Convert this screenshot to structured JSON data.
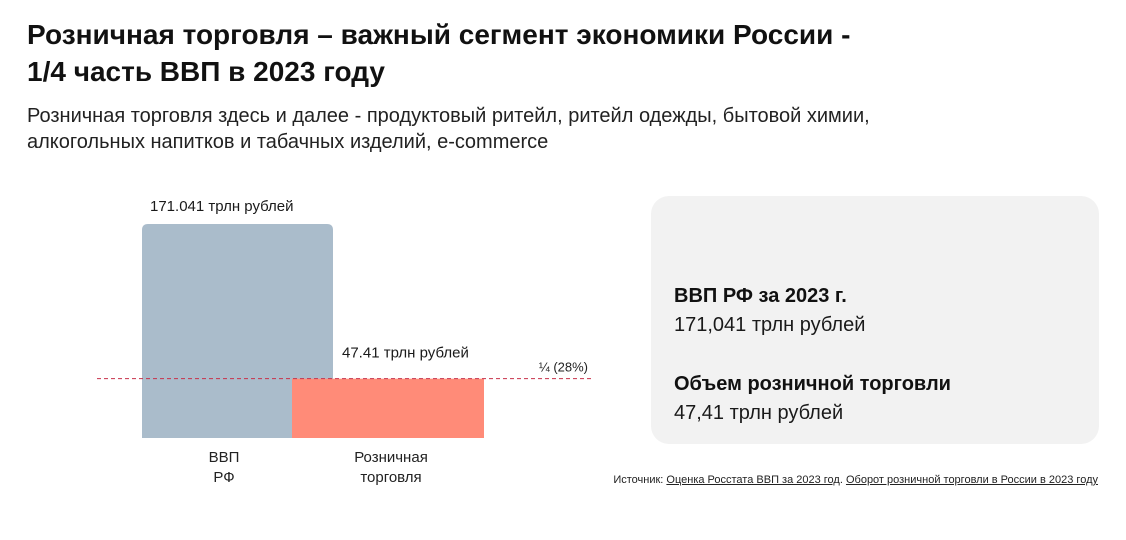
{
  "header": {
    "title_line1": "Розничная торговля – важный сегмент экономики России -",
    "title_line2": "1/4 часть ВВП в 2023 году",
    "subtitle_line1": "Розничная торговля здесь и далее - продуктовый ритейл, ритейл одежды, бытовой химии,",
    "subtitle_line2": "алкогольных напитков и табачных изделий, e-commerce"
  },
  "chart_data": {
    "type": "bar",
    "title": "",
    "unit": "трлн рублей",
    "categories": [
      {
        "name": "ВВП РФ",
        "label_lines": [
          "ВВП",
          "РФ"
        ]
      },
      {
        "name": "Розничная торговля",
        "label_lines": [
          "Розничная",
          "торговля"
        ]
      }
    ],
    "values": [
      171.041,
      47.41
    ],
    "data_labels": [
      "171.041 трлн рублей",
      "47.41 трлн рублей"
    ],
    "reference_line": {
      "value": 47.41,
      "label": "¼ (28%)"
    },
    "colors": [
      "#aabccb",
      "#ff8b78"
    ],
    "reference_color": "#c8304a",
    "ylim": [
      0,
      171.041
    ]
  },
  "info": {
    "gdp_label": "ВВП РФ за 2023 г.",
    "gdp_value": "171,041 трлн рублей",
    "retail_label": "Объем розничной торговли",
    "retail_value": "47,41 трлн рублей"
  },
  "source": {
    "prefix": "Источник: ",
    "link1": "Оценка Росстата ВВП за 2023 год",
    "separator": ". ",
    "link2": "Оборот розничной торговли в России в 2023 году"
  }
}
